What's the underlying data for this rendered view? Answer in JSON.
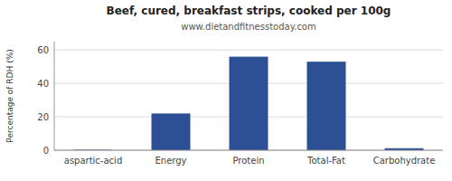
{
  "chart_data": {
    "type": "bar",
    "title": "Beef, cured, breakfast strips, cooked per 100g",
    "subtitle": "www.dietandfitnesstoday.com",
    "categories": [
      "aspartic-acid",
      "Energy",
      "Protein",
      "Total-Fat",
      "Carbohydrate"
    ],
    "values": [
      0.3,
      22,
      56,
      53,
      1.2
    ],
    "color": "#2d4f96",
    "ylabel": "Percentage of RDH (%)",
    "ylim": [
      0,
      65
    ],
    "yticks": [
      0,
      20,
      40,
      60
    ],
    "grid": true
  }
}
